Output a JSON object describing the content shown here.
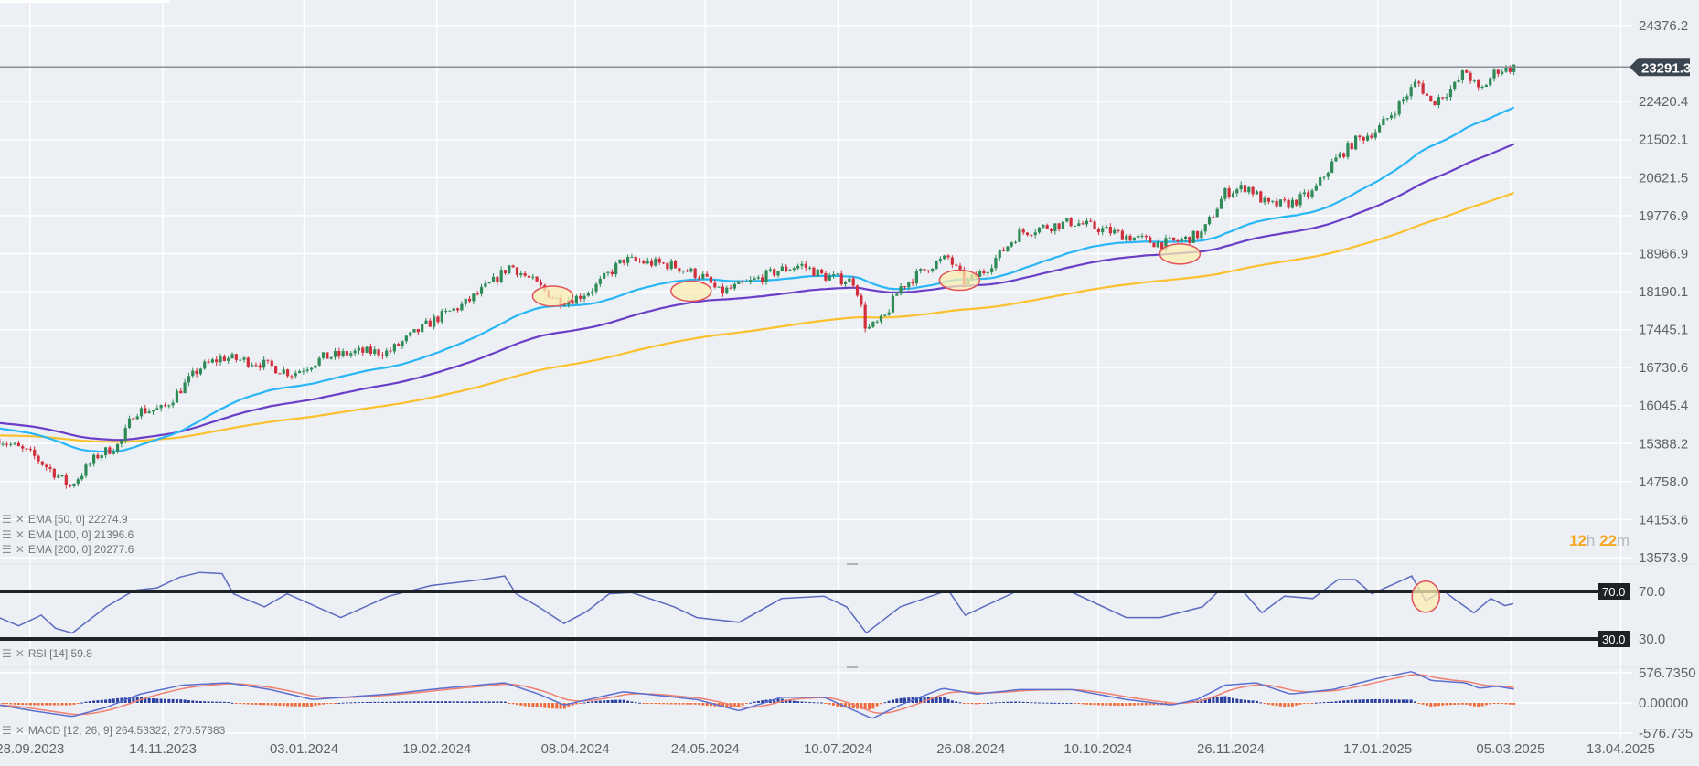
{
  "colors": {
    "background": "#eceff3",
    "grid": "#ffffff",
    "candle_up": "#2e8b57",
    "candle_down": "#d22f3c",
    "ema50": "#29b6f6",
    "ema100": "#6a3fc8",
    "ema200": "#fbc02d",
    "rsi_line": "#5c6bc0",
    "rsi_levels": "#1c2226",
    "macd_line": "#5a6fd0",
    "signal_line": "#f08070",
    "hist_pos": "#2a3fa0",
    "hist_neg": "#f06a3a",
    "annotation_fill": "#fbeeb0",
    "annotation_stroke": "#e0505a",
    "timer": "#f5a623"
  },
  "legends": {
    "ema50": "EMA [50, 0] 22274.9",
    "ema100": "EMA [100, 0] 21396.6",
    "ema200": "EMA [200, 0] 20277.6",
    "rsi": "RSI [14] 59.8",
    "macd": "MACD [12, 26, 9] 264.53322,  270.57383",
    "icons": [
      "settings-icon",
      "close-icon"
    ]
  },
  "timer": {
    "hours": "12",
    "h": "h",
    "minutes": "22",
    "m": "m"
  },
  "chart_data": [
    {
      "type": "candlestick",
      "pane": "price",
      "scale": "log",
      "grid": true,
      "last_price": 23291.3,
      "last_price_label": "23291.3",
      "y_ticks": [
        "24376.2",
        "23291.3",
        "22420.4",
        "21502.1",
        "20621.5",
        "19776.9",
        "18966.9",
        "18190.1",
        "17445.1",
        "16730.6",
        "16045.4",
        "15388.2",
        "14758.0",
        "14153.6",
        "13573.9"
      ],
      "x_ticks": [
        "28.09.2023",
        "14.11.2023",
        "03.01.2024",
        "19.02.2024",
        "08.04.2024",
        "24.05.2024",
        "10.07.2024",
        "26.08.2024",
        "10.10.2024",
        "26.11.2024",
        "17.01.2025",
        "05.03.2025",
        "13.04.2025"
      ],
      "close_approx": [
        [
          "2023-09-17",
          15470
        ],
        [
          "2023-09-29",
          15190
        ],
        [
          "2023-10-08",
          14850
        ],
        [
          "2023-10-12",
          14670
        ],
        [
          "2023-10-22",
          15190
        ],
        [
          "2023-10-30",
          15380
        ],
        [
          "2023-11-04",
          15950
        ],
        [
          "2023-11-14",
          15980
        ],
        [
          "2023-11-20",
          16320
        ],
        [
          "2023-11-27",
          16720
        ],
        [
          "2023-12-05",
          16920
        ],
        [
          "2023-12-18",
          16820
        ],
        [
          "2023-12-30",
          16620
        ],
        [
          "2024-01-10",
          16920
        ],
        [
          "2024-01-22",
          17020
        ],
        [
          "2024-02-02",
          17020
        ],
        [
          "2024-02-10",
          17330
        ],
        [
          "2024-02-18",
          17630
        ],
        [
          "2024-02-29",
          17950
        ],
        [
          "2024-03-10",
          18390
        ],
        [
          "2024-03-16",
          18730
        ],
        [
          "2024-03-23",
          18430
        ],
        [
          "2024-04-02",
          18010
        ],
        [
          "2024-04-08",
          18060
        ],
        [
          "2024-04-15",
          18280
        ],
        [
          "2024-04-25",
          18840
        ],
        [
          "2024-05-02",
          18790
        ],
        [
          "2024-05-12",
          18730
        ],
        [
          "2024-05-23",
          18500
        ],
        [
          "2024-05-29",
          18170
        ],
        [
          "2024-06-08",
          18360
        ],
        [
          "2024-06-19",
          18620
        ],
        [
          "2024-06-27",
          18730
        ],
        [
          "2024-07-05",
          18500
        ],
        [
          "2024-07-16",
          18390
        ],
        [
          "2024-07-20",
          17440
        ],
        [
          "2024-07-26",
          17630
        ],
        [
          "2024-08-01",
          18280
        ],
        [
          "2024-08-12",
          18730
        ],
        [
          "2024-08-18",
          18880
        ],
        [
          "2024-08-24",
          18360
        ],
        [
          "2024-08-31",
          18620
        ],
        [
          "2024-09-12",
          19400
        ],
        [
          "2024-09-20",
          19520
        ],
        [
          "2024-10-01",
          19640
        ],
        [
          "2024-10-09",
          19520
        ],
        [
          "2024-10-20",
          19340
        ],
        [
          "2024-11-01",
          19170
        ],
        [
          "2024-11-09",
          19250
        ],
        [
          "2024-11-16",
          19400
        ],
        [
          "2024-11-24",
          20280
        ],
        [
          "2024-12-02",
          20420
        ],
        [
          "2024-12-09",
          20000
        ],
        [
          "2024-12-17",
          20040
        ],
        [
          "2024-12-25",
          20280
        ],
        [
          "2025-01-01",
          20960
        ],
        [
          "2025-01-09",
          21470
        ],
        [
          "2025-01-17",
          21740
        ],
        [
          "2025-01-25",
          22380
        ],
        [
          "2025-01-31",
          22930
        ],
        [
          "2025-02-05",
          22380
        ],
        [
          "2025-02-13",
          22790
        ],
        [
          "2025-02-17",
          23210
        ],
        [
          "2025-02-22",
          22650
        ],
        [
          "2025-02-28",
          23210
        ],
        [
          "2025-03-07",
          23291.3
        ]
      ],
      "ema_start": {
        "ema50": 15660,
        "ema100": 15750,
        "ema200": 15530
      },
      "ema_last": {
        "ema50": 22274.9,
        "ema100": 21396.6,
        "ema200": 20277.6
      },
      "annotations": [
        {
          "type": "ellipse",
          "date": "2024-03-31",
          "price": 18100
        },
        {
          "type": "ellipse",
          "date": "2024-05-19",
          "price": 18200
        },
        {
          "type": "ellipse",
          "date": "2024-08-22",
          "price": 18420
        },
        {
          "type": "ellipse",
          "date": "2024-11-08",
          "price": 18960
        }
      ]
    },
    {
      "type": "line",
      "pane": "rsi",
      "levels": [
        70,
        30
      ],
      "level_labels": [
        "70.0",
        "30.0"
      ],
      "y_ticks": [
        "70.0",
        "30.0"
      ],
      "last": 59.8,
      "values": [
        [
          "2023-09-17",
          48
        ],
        [
          "2023-09-24",
          41
        ],
        [
          "2023-10-02",
          50
        ],
        [
          "2023-10-07",
          39
        ],
        [
          "2023-10-13",
          35
        ],
        [
          "2023-10-25",
          57
        ],
        [
          "2023-11-04",
          71
        ],
        [
          "2023-11-12",
          73
        ],
        [
          "2023-11-20",
          82
        ],
        [
          "2023-11-27",
          86
        ],
        [
          "2023-12-05",
          85
        ],
        [
          "2023-12-09",
          68
        ],
        [
          "2023-12-20",
          57
        ],
        [
          "2023-12-28",
          68
        ],
        [
          "2024-01-16",
          48
        ],
        [
          "2024-02-02",
          66
        ],
        [
          "2024-02-17",
          75
        ],
        [
          "2024-03-06",
          80
        ],
        [
          "2024-03-14",
          83
        ],
        [
          "2024-03-18",
          68
        ],
        [
          "2024-03-26",
          57
        ],
        [
          "2024-04-04",
          43
        ],
        [
          "2024-04-12",
          53
        ],
        [
          "2024-04-20",
          68
        ],
        [
          "2024-04-28",
          69
        ],
        [
          "2024-05-13",
          57
        ],
        [
          "2024-05-21",
          48
        ],
        [
          "2024-06-05",
          44
        ],
        [
          "2024-06-20",
          64
        ],
        [
          "2024-07-05",
          66
        ],
        [
          "2024-07-13",
          57
        ],
        [
          "2024-07-20",
          35
        ],
        [
          "2024-08-01",
          57
        ],
        [
          "2024-08-18",
          71
        ],
        [
          "2024-08-24",
          50
        ],
        [
          "2024-09-12",
          71
        ],
        [
          "2024-10-01",
          69
        ],
        [
          "2024-10-20",
          48
        ],
        [
          "2024-11-01",
          48
        ],
        [
          "2024-11-16",
          57
        ],
        [
          "2024-11-22",
          71
        ],
        [
          "2024-11-30",
          71
        ],
        [
          "2024-12-07",
          52
        ],
        [
          "2024-12-15",
          66
        ],
        [
          "2024-12-25",
          64
        ],
        [
          "2025-01-03",
          80
        ],
        [
          "2025-01-09",
          80
        ],
        [
          "2025-01-15",
          68
        ],
        [
          "2025-01-29",
          83
        ],
        [
          "2025-02-03",
          62
        ],
        [
          "2025-02-09",
          71
        ],
        [
          "2025-02-14",
          62
        ],
        [
          "2025-02-20",
          52
        ],
        [
          "2025-02-26",
          64
        ],
        [
          "2025-03-03",
          58
        ],
        [
          "2025-03-06",
          59.8
        ]
      ],
      "annotations": [
        {
          "type": "circle",
          "date": "2025-02-03",
          "value": 64
        }
      ]
    },
    {
      "type": "line+histogram",
      "pane": "macd",
      "y_ticks": [
        "576.7350",
        "0.00000",
        "-576.735"
      ],
      "y_range": [
        -576.735,
        576.735
      ],
      "last_macd": 264.53322,
      "last_signal": 270.57383,
      "macd_values": [
        [
          "2023-09-17",
          -40
        ],
        [
          "2023-09-29",
          -150
        ],
        [
          "2023-10-13",
          -260
        ],
        [
          "2023-10-25",
          -85
        ],
        [
          "2023-11-06",
          170
        ],
        [
          "2023-11-21",
          340
        ],
        [
          "2023-12-07",
          385
        ],
        [
          "2023-12-22",
          255
        ],
        [
          "2024-01-06",
          65
        ],
        [
          "2024-02-02",
          170
        ],
        [
          "2024-02-21",
          280
        ],
        [
          "2024-03-14",
          385
        ],
        [
          "2024-03-26",
          170
        ],
        [
          "2024-04-04",
          -40
        ],
        [
          "2024-04-25",
          215
        ],
        [
          "2024-05-21",
          65
        ],
        [
          "2024-06-05",
          -150
        ],
        [
          "2024-06-20",
          110
        ],
        [
          "2024-07-05",
          110
        ],
        [
          "2024-07-16",
          -150
        ],
        [
          "2024-07-22",
          -300
        ],
        [
          "2024-08-01",
          -40
        ],
        [
          "2024-08-16",
          280
        ],
        [
          "2024-08-28",
          170
        ],
        [
          "2024-09-12",
          255
        ],
        [
          "2024-10-01",
          255
        ],
        [
          "2024-10-20",
          65
        ],
        [
          "2024-11-05",
          -40
        ],
        [
          "2024-11-14",
          65
        ],
        [
          "2024-11-24",
          340
        ],
        [
          "2024-12-05",
          385
        ],
        [
          "2024-12-17",
          170
        ],
        [
          "2025-01-01",
          255
        ],
        [
          "2025-01-17",
          470
        ],
        [
          "2025-01-29",
          600
        ],
        [
          "2025-02-05",
          430
        ],
        [
          "2025-02-17",
          385
        ],
        [
          "2025-02-22",
          280
        ],
        [
          "2025-02-28",
          320
        ],
        [
          "2025-03-06",
          264.53
        ]
      ]
    }
  ]
}
